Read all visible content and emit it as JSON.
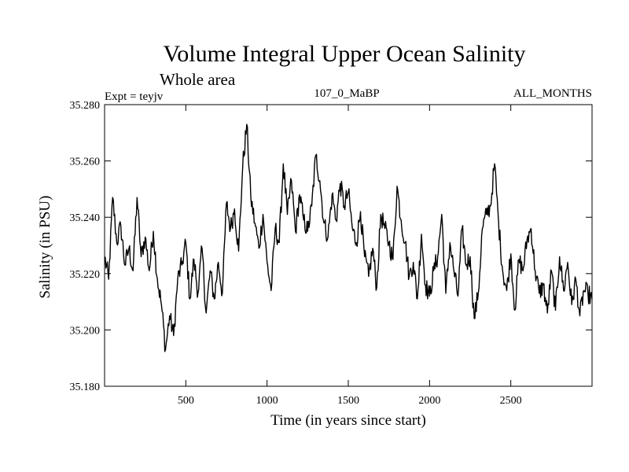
{
  "chart_data": {
    "type": "line",
    "title": "Volume Integral Upper Ocean Salinity",
    "subtitle": "Whole area",
    "expt_label": "Expt = teyjv",
    "run_label": "107_0_MaBP",
    "months_label": "ALL_MONTHS",
    "xlabel": "Time (in years since start)",
    "ylabel": "Salinity (in PSU)",
    "xlim": [
      0,
      3000
    ],
    "ylim": [
      35.18,
      35.28
    ],
    "x_ticks": [
      500,
      1000,
      1500,
      2000,
      2500
    ],
    "x_tick_labels": [
      "500",
      "1000",
      "1500",
      "2000",
      "2500"
    ],
    "y_ticks": [
      35.18,
      35.2,
      35.22,
      35.24,
      35.26,
      35.28
    ],
    "y_tick_labels": [
      "35.180",
      "35.200",
      "35.220",
      "35.240",
      "35.260",
      "35.280"
    ],
    "grid": false,
    "series": [
      {
        "name": "Salinity",
        "color": "#000000",
        "x": [
          0,
          25,
          50,
          75,
          100,
          125,
          150,
          175,
          200,
          225,
          250,
          275,
          300,
          325,
          350,
          375,
          400,
          425,
          450,
          475,
          500,
          525,
          550,
          575,
          600,
          625,
          650,
          675,
          700,
          725,
          750,
          775,
          800,
          825,
          850,
          875,
          900,
          925,
          950,
          975,
          1000,
          1025,
          1050,
          1075,
          1100,
          1125,
          1150,
          1175,
          1200,
          1225,
          1250,
          1275,
          1300,
          1325,
          1350,
          1375,
          1400,
          1425,
          1450,
          1475,
          1500,
          1525,
          1550,
          1575,
          1600,
          1625,
          1650,
          1675,
          1700,
          1725,
          1750,
          1775,
          1800,
          1825,
          1850,
          1875,
          1900,
          1925,
          1950,
          1975,
          2000,
          2025,
          2050,
          2075,
          2100,
          2125,
          2150,
          2175,
          2200,
          2225,
          2250,
          2275,
          2300,
          2325,
          2350,
          2375,
          2400,
          2425,
          2450,
          2475,
          2500,
          2525,
          2550,
          2575,
          2600,
          2625,
          2650,
          2675,
          2700,
          2725,
          2750,
          2775,
          2800,
          2825,
          2850,
          2875,
          2900,
          2925,
          2950,
          2975,
          3000
        ],
        "values": [
          35.226,
          35.218,
          35.247,
          35.231,
          35.237,
          35.223,
          35.229,
          35.221,
          35.247,
          35.226,
          35.233,
          35.221,
          35.235,
          35.218,
          35.209,
          35.193,
          35.205,
          35.198,
          35.218,
          35.223,
          35.231,
          35.211,
          35.225,
          35.213,
          35.229,
          35.206,
          35.221,
          35.211,
          35.224,
          35.213,
          35.245,
          35.236,
          35.243,
          35.228,
          35.258,
          35.273,
          35.247,
          35.238,
          35.229,
          35.241,
          35.224,
          35.214,
          35.236,
          35.231,
          35.259,
          35.241,
          35.253,
          35.235,
          35.248,
          35.239,
          35.235,
          35.244,
          35.262,
          35.253,
          35.238,
          35.233,
          35.248,
          35.239,
          35.252,
          35.244,
          35.249,
          35.236,
          35.231,
          35.242,
          35.226,
          35.219,
          35.229,
          35.215,
          35.241,
          35.236,
          35.231,
          35.225,
          35.251,
          35.239,
          35.231,
          35.219,
          35.224,
          35.211,
          35.234,
          35.216,
          35.212,
          35.221,
          35.226,
          35.241,
          35.213,
          35.231,
          35.221,
          35.212,
          35.236,
          35.223,
          35.226,
          35.204,
          35.213,
          35.236,
          35.241,
          35.244,
          35.259,
          35.238,
          35.221,
          35.214,
          35.227,
          35.207,
          35.225,
          35.221,
          35.232,
          35.236,
          35.221,
          35.213,
          35.216,
          35.206,
          35.221,
          35.207,
          35.226,
          35.214,
          35.224,
          35.209,
          35.218,
          35.205,
          35.214,
          35.213,
          35.211
        ]
      }
    ]
  }
}
